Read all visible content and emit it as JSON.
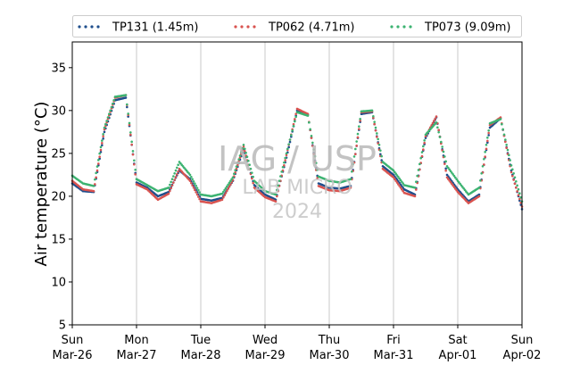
{
  "chart_data": {
    "type": "scatter",
    "title": "",
    "xlabel": "",
    "ylabel": "Air temperature (°C)",
    "ylim": [
      5,
      38
    ],
    "xlim": [
      "2023-03-26 00:00",
      "2023-04-02 00:00"
    ],
    "yticks": [
      "5",
      "10",
      "15",
      "20",
      "25",
      "30",
      "35"
    ],
    "xticks": [
      {
        "day": "Sun",
        "date": "Mar-26"
      },
      {
        "day": "Mon",
        "date": "Mar-27"
      },
      {
        "day": "Tue",
        "date": "Mar-28"
      },
      {
        "day": "Wed",
        "date": "Mar-29"
      },
      {
        "day": "Thu",
        "date": "Mar-30"
      },
      {
        "day": "Fri",
        "date": "Mar-31"
      },
      {
        "day": "Sat",
        "date": "Apr-01"
      },
      {
        "day": "Sun",
        "date": "Apr-02"
      }
    ],
    "grid": "vertical",
    "legend_position": "top",
    "watermark": {
      "line1": "IAG / USP",
      "line2": "LAB MICRO",
      "line3": "2024"
    },
    "series": [
      {
        "name": "TP131 (1.45m)",
        "color": "#1f4e8c",
        "x": [
          "2023-03-26 00:00",
          "2023-03-26 04:00",
          "2023-03-26 08:00",
          "2023-03-26 12:00",
          "2023-03-26 16:00",
          "2023-03-26 20:00",
          "2023-03-27 00:00",
          "2023-03-27 04:00",
          "2023-03-27 08:00",
          "2023-03-27 12:00",
          "2023-03-27 16:00",
          "2023-03-27 20:00",
          "2023-03-28 00:00",
          "2023-03-28 04:00",
          "2023-03-28 08:00",
          "2023-03-28 12:00",
          "2023-03-28 16:00",
          "2023-03-28 20:00",
          "2023-03-29 00:00",
          "2023-03-29 04:00",
          "2023-03-29 08:00",
          "2023-03-29 12:00",
          "2023-03-29 16:00",
          "2023-03-29 20:00",
          "2023-03-30 00:00",
          "2023-03-30 04:00",
          "2023-03-30 08:00",
          "2023-03-30 12:00",
          "2023-03-30 16:00",
          "2023-03-30 20:00",
          "2023-03-31 00:00",
          "2023-03-31 04:00",
          "2023-03-31 08:00",
          "2023-03-31 12:00",
          "2023-03-31 16:00",
          "2023-03-31 20:00",
          "2023-04-01 00:00",
          "2023-04-01 04:00",
          "2023-04-01 08:00",
          "2023-04-01 12:00",
          "2023-04-01 16:00",
          "2023-04-01 20:00",
          "2023-04-02 00:00"
        ],
        "y": [
          21.5,
          20.6,
          20.5,
          27.5,
          31.2,
          31.5,
          21.6,
          21.0,
          20.0,
          20.5,
          23.0,
          22.0,
          19.7,
          19.5,
          19.8,
          21.8,
          25.5,
          21.3,
          20.2,
          19.6,
          24.5,
          30.0,
          29.5,
          21.5,
          21.0,
          20.9,
          21.2,
          29.6,
          29.8,
          23.5,
          22.5,
          20.8,
          20.2,
          26.8,
          29.2,
          22.5,
          20.8,
          19.4,
          20.2,
          28.0,
          29.1,
          23.0,
          18.5
        ]
      },
      {
        "name": "TP062 (4.71m)",
        "color": "#d9534f",
        "x": [
          "2023-03-26 00:00",
          "2023-03-26 04:00",
          "2023-03-26 08:00",
          "2023-03-26 12:00",
          "2023-03-26 16:00",
          "2023-03-26 20:00",
          "2023-03-27 00:00",
          "2023-03-27 04:00",
          "2023-03-27 08:00",
          "2023-03-27 12:00",
          "2023-03-27 16:00",
          "2023-03-27 20:00",
          "2023-03-28 00:00",
          "2023-03-28 04:00",
          "2023-03-28 08:00",
          "2023-03-28 12:00",
          "2023-03-28 16:00",
          "2023-03-28 20:00",
          "2023-03-29 00:00",
          "2023-03-29 04:00",
          "2023-03-29 08:00",
          "2023-03-29 12:00",
          "2023-03-29 16:00",
          "2023-03-29 20:00",
          "2023-03-30 00:00",
          "2023-03-30 04:00",
          "2023-03-30 08:00",
          "2023-03-30 12:00",
          "2023-03-30 16:00",
          "2023-03-30 20:00",
          "2023-03-31 00:00",
          "2023-03-31 04:00",
          "2023-03-31 08:00",
          "2023-03-31 12:00",
          "2023-03-31 16:00",
          "2023-03-31 20:00",
          "2023-04-01 00:00",
          "2023-04-01 04:00",
          "2023-04-01 08:00",
          "2023-04-01 12:00",
          "2023-04-01 16:00",
          "2023-04-01 20:00",
          "2023-04-02 00:00"
        ],
        "y": [
          21.8,
          20.8,
          20.6,
          27.8,
          31.5,
          31.8,
          21.4,
          20.8,
          19.6,
          20.3,
          23.2,
          21.8,
          19.4,
          19.2,
          19.6,
          21.9,
          25.8,
          21.0,
          19.9,
          19.4,
          24.8,
          30.2,
          29.6,
          21.2,
          20.7,
          20.6,
          21.0,
          29.8,
          29.9,
          23.2,
          22.2,
          20.4,
          20.0,
          27.0,
          29.3,
          22.2,
          20.5,
          19.2,
          20.0,
          28.3,
          29.2,
          22.8,
          18.8
        ]
      },
      {
        "name": "TP073 (9.09m)",
        "color": "#3cb371",
        "x": [
          "2023-03-26 00:00",
          "2023-03-26 04:00",
          "2023-03-26 08:00",
          "2023-03-26 12:00",
          "2023-03-26 16:00",
          "2023-03-26 20:00",
          "2023-03-27 00:00",
          "2023-03-27 04:00",
          "2023-03-27 08:00",
          "2023-03-27 12:00",
          "2023-03-27 16:00",
          "2023-03-27 20:00",
          "2023-03-28 00:00",
          "2023-03-28 04:00",
          "2023-03-28 08:00",
          "2023-03-28 12:00",
          "2023-03-28 16:00",
          "2023-03-28 20:00",
          "2023-03-29 00:00",
          "2023-03-29 04:00",
          "2023-03-29 08:00",
          "2023-03-29 12:00",
          "2023-03-29 16:00",
          "2023-03-29 20:00",
          "2023-03-30 00:00",
          "2023-03-30 04:00",
          "2023-03-30 08:00",
          "2023-03-30 12:00",
          "2023-03-30 16:00",
          "2023-03-30 20:00",
          "2023-03-31 00:00",
          "2023-03-31 04:00",
          "2023-03-31 08:00",
          "2023-03-31 12:00",
          "2023-03-31 16:00",
          "2023-03-31 20:00",
          "2023-04-01 00:00",
          "2023-04-01 04:00",
          "2023-04-01 08:00",
          "2023-04-01 12:00",
          "2023-04-01 16:00",
          "2023-04-01 20:00",
          "2023-04-02 00:00"
        ],
        "y": [
          22.4,
          21.5,
          21.2,
          28.0,
          31.6,
          31.8,
          22.0,
          21.3,
          20.6,
          21.0,
          24.0,
          22.5,
          20.2,
          20.0,
          20.3,
          22.2,
          26.0,
          21.8,
          20.6,
          20.2,
          25.0,
          29.8,
          29.4,
          22.3,
          21.8,
          21.6,
          22.0,
          29.9,
          30.0,
          24.0,
          23.0,
          21.3,
          21.0,
          27.2,
          28.6,
          23.5,
          21.8,
          20.2,
          21.0,
          28.5,
          29.0,
          23.6,
          19.4
        ]
      }
    ]
  }
}
